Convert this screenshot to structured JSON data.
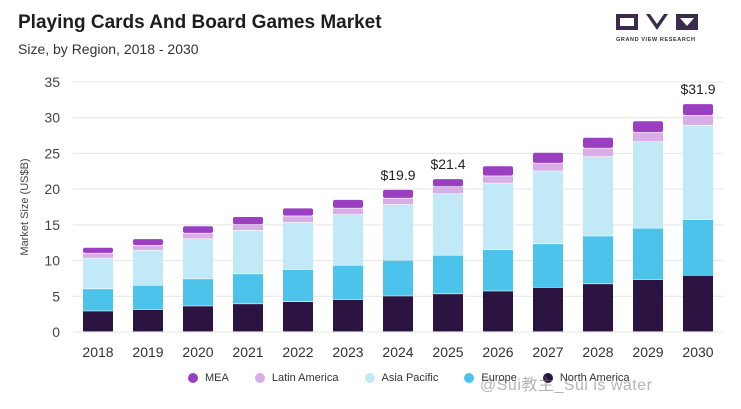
{
  "header": {
    "title": "Playing Cards And Board Games Market",
    "subtitle": "Size, by Region, 2018 - 2030"
  },
  "logo": {
    "text": "GRAND VIEW RESEARCH",
    "color": "#3a2c4a"
  },
  "watermark": {
    "text": "@Sui教主_Sui is water"
  },
  "chart_data": {
    "type": "bar",
    "stacked": true,
    "categories": [
      "2018",
      "2019",
      "2020",
      "2021",
      "2022",
      "2023",
      "2024",
      "2025",
      "2026",
      "2027",
      "2028",
      "2029",
      "2030"
    ],
    "ylabel": "Market Size (US$B)",
    "xlabel": "",
    "ylim": [
      0,
      35
    ],
    "yticks": [
      0,
      5,
      10,
      15,
      20,
      25,
      30,
      35
    ],
    "grid": true,
    "legend_position": "bottom",
    "series": [
      {
        "name": "North America",
        "color": "#2b1442",
        "values": [
          2.9,
          3.1,
          3.6,
          3.9,
          4.2,
          4.5,
          5.0,
          5.3,
          5.7,
          6.2,
          6.7,
          7.3,
          7.9
        ]
      },
      {
        "name": "Europe",
        "color": "#4cc3ea",
        "values": [
          3.1,
          3.4,
          3.8,
          4.2,
          4.5,
          4.8,
          5.0,
          5.4,
          5.8,
          6.1,
          6.7,
          7.2,
          7.8
        ]
      },
      {
        "name": "Asia Pacific",
        "color": "#c2e9f8",
        "values": [
          4.3,
          4.9,
          5.6,
          6.1,
          6.6,
          7.1,
          7.8,
          8.6,
          9.3,
          10.2,
          11.1,
          12.1,
          13.2
        ]
      },
      {
        "name": "Latin America",
        "color": "#d9aee8",
        "values": [
          0.7,
          0.7,
          0.8,
          0.8,
          0.9,
          0.9,
          0.9,
          1.0,
          1.0,
          1.1,
          1.2,
          1.3,
          1.4
        ]
      },
      {
        "name": "MEA",
        "color": "#9a3fc2",
        "values": [
          0.8,
          0.9,
          1.0,
          1.1,
          1.1,
          1.2,
          1.2,
          1.1,
          1.4,
          1.5,
          1.5,
          1.6,
          1.6
        ]
      }
    ],
    "data_labels": [
      {
        "category": "2024",
        "text": "$19.9"
      },
      {
        "category": "2025",
        "text": "$21.4"
      },
      {
        "category": "2030",
        "text": "$31.9"
      }
    ],
    "legend_order": [
      "MEA",
      "Latin America",
      "Asia Pacific",
      "Europe",
      "North America"
    ]
  }
}
